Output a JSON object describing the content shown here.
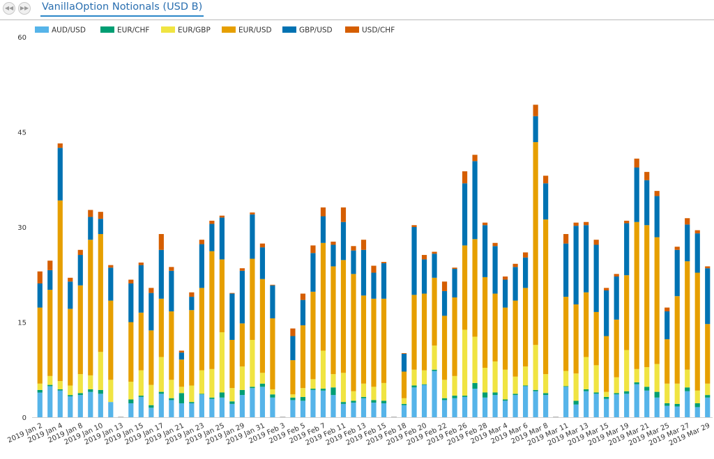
{
  "toolbar": {
    "prev_icon": "rewind-icon",
    "next_icon": "forward-icon",
    "prev_glyph": "◀◀",
    "next_glyph": "▶▶",
    "tab_label": "VanillaOption Notionals (USD B)"
  },
  "chart_data": {
    "type": "bar",
    "stacked": true,
    "title": "",
    "xlabel": "",
    "ylabel": "",
    "ylim": [
      0,
      60
    ],
    "yticks": [
      0,
      15,
      30,
      45,
      60
    ],
    "grid": false,
    "legend_position": "top-left",
    "categories": [
      "2019 Jan 2",
      "2019 Jan 3",
      "2019 Jan 4",
      "2019 Jan 7",
      "2019 Jan 8",
      "2019 Jan 9",
      "2019 Jan 10",
      "2019 Jan 11",
      "2019 Jan 13",
      "2019 Jan 14",
      "2019 Jan 15",
      "2019 Jan 16",
      "2019 Jan 17",
      "2019 Jan 18",
      "2019 Jan 21",
      "2019 Jan 22",
      "2019 Jan 23",
      "2019 Jan 24",
      "2019 Jan 25",
      "2019 Jan 28",
      "2019 Jan 29",
      "2019 Jan 30",
      "2019 Jan 31",
      "2019 Feb 1",
      "2019 Feb 3",
      "2019 Feb 4",
      "2019 Feb 5",
      "2019 Feb 6",
      "2019 Feb 7",
      "2019 Feb 8",
      "2019 Feb 11",
      "2019 Feb 12",
      "2019 Feb 13",
      "2019 Feb 14",
      "2019 Feb 15",
      "2019 Feb 17",
      "2019 Feb 18",
      "2019 Feb 19",
      "2019 Feb 20",
      "2019 Feb 21",
      "2019 Feb 22",
      "2019 Feb 25",
      "2019 Feb 26",
      "2019 Feb 27",
      "2019 Feb 28",
      "2019 Mar 1",
      "2019 Mar 4",
      "2019 Mar 5",
      "2019 Mar 6",
      "2019 Mar 7",
      "2019 Mar 8",
      "2019 Mar 10",
      "2019 Mar 11",
      "2019 Mar 12",
      "2019 Mar 13",
      "2019 Mar 14",
      "2019 Mar 15",
      "2019 Mar 18",
      "2019 Mar 19",
      "2019 Mar 20",
      "2019 Mar 21",
      "2019 Mar 22",
      "2019 Mar 25",
      "2019 Mar 26",
      "2019 Mar 27",
      "2019 Mar 28",
      "2019 Mar 29"
    ],
    "tick_labels": [
      {
        "index": 0,
        "label": "2019 Jan 2"
      },
      {
        "index": 2,
        "label": "2019 Jan 4"
      },
      {
        "index": 4,
        "label": "2019 Jan 8"
      },
      {
        "index": 6,
        "label": "2019 Jan 10"
      },
      {
        "index": 8,
        "label": "2019 Jan 13"
      },
      {
        "index": 10,
        "label": "2019 Jan 15"
      },
      {
        "index": 12,
        "label": "2019 Jan 17"
      },
      {
        "index": 14,
        "label": "2019 Jan 21"
      },
      {
        "index": 16,
        "label": "2019 Jan 23"
      },
      {
        "index": 18,
        "label": "2019 Jan 25"
      },
      {
        "index": 20,
        "label": "2019 Jan 29"
      },
      {
        "index": 22,
        "label": "2019 Jan 31"
      },
      {
        "index": 24,
        "label": "2019 Feb 3"
      },
      {
        "index": 26,
        "label": "2019 Feb 5"
      },
      {
        "index": 28,
        "label": "2019 Feb 7"
      },
      {
        "index": 30,
        "label": "2019 Feb 11"
      },
      {
        "index": 32,
        "label": "2019 Feb 13"
      },
      {
        "index": 34,
        "label": "2019 Feb 15"
      },
      {
        "index": 36,
        "label": "2019 Feb 18"
      },
      {
        "index": 38,
        "label": "2019 Feb 20"
      },
      {
        "index": 40,
        "label": "2019 Feb 22"
      },
      {
        "index": 42,
        "label": "2019 Feb 26"
      },
      {
        "index": 44,
        "label": "2019 Feb 28"
      },
      {
        "index": 46,
        "label": "2019 Mar 4"
      },
      {
        "index": 48,
        "label": "2019 Mar 6"
      },
      {
        "index": 50,
        "label": "2019 Mar 8"
      },
      {
        "index": 52,
        "label": "2019 Mar 11"
      },
      {
        "index": 54,
        "label": "2019 Mar 13"
      },
      {
        "index": 56,
        "label": "2019 Mar 15"
      },
      {
        "index": 58,
        "label": "2019 Mar 19"
      },
      {
        "index": 60,
        "label": "2019 Mar 21"
      },
      {
        "index": 62,
        "label": "2019 Mar 25"
      },
      {
        "index": 64,
        "label": "2019 Mar 27"
      },
      {
        "index": 66,
        "label": "2019 Mar 29"
      }
    ],
    "series": [
      {
        "name": "AUD/USD",
        "color": "#56b4e9",
        "values": [
          3.9,
          4.9,
          4.2,
          3.3,
          3.5,
          4.0,
          3.7,
          2.4,
          0,
          2.2,
          3.2,
          1.5,
          3.7,
          2.7,
          2.2,
          2.2,
          3.6,
          2.9,
          3.1,
          2.1,
          3.5,
          4.6,
          4.8,
          3.1,
          0,
          2.7,
          2.6,
          4.3,
          4.2,
          3.5,
          2.1,
          2.3,
          3.0,
          2.3,
          2.2,
          0,
          1.9,
          4.7,
          5.1,
          7.3,
          2.7,
          3.0,
          3.2,
          4.5,
          3.1,
          3.5,
          2.6,
          3.5,
          4.9,
          4.1,
          3.5,
          0,
          4.8,
          2.0,
          4.1,
          3.7,
          2.9,
          3.6,
          3.7,
          5.2,
          4.2,
          3.1,
          1.8,
          1.7,
          4.1,
          1.6,
          3.1
        ]
      },
      {
        "name": "EUR/CHF",
        "color": "#009e73",
        "values": [
          0.4,
          0.2,
          0.2,
          0.2,
          0.3,
          0.4,
          0.6,
          0,
          0,
          0.6,
          0.2,
          0.4,
          0.3,
          0.3,
          1.6,
          0.2,
          0.1,
          0.2,
          0.8,
          0.4,
          0.8,
          0.2,
          0.5,
          0.5,
          0,
          0.4,
          0.6,
          0.2,
          0.3,
          1.2,
          0.3,
          0.3,
          0.2,
          0.4,
          0.4,
          0,
          0.2,
          0.3,
          0.1,
          0.2,
          0.3,
          0.4,
          0.2,
          0.9,
          0.8,
          0.4,
          0.2,
          0.2,
          0.1,
          0.2,
          0.3,
          0,
          0.1,
          0.6,
          0.3,
          0.2,
          0.3,
          0.2,
          0.4,
          0.3,
          0.6,
          0.9,
          0.4,
          0.4,
          0.6,
          0.6,
          0.4
        ]
      },
      {
        "name": "EUR/GBP",
        "color": "#f0e442",
        "values": [
          1,
          1.4,
          1.3,
          1.5,
          3.0,
          2.2,
          6.0,
          3.5,
          0,
          2.8,
          4.0,
          3.2,
          5.5,
          2.9,
          1.0,
          2.6,
          3.7,
          4.5,
          9.5,
          2.1,
          3.7,
          7.4,
          1.7,
          0.8,
          0,
          0.5,
          1.4,
          1.5,
          6.0,
          2.1,
          4.6,
          1.5,
          2.1,
          2.1,
          2.8,
          0,
          0.9,
          2.5,
          2.2,
          3.8,
          2.9,
          3.1,
          10.4,
          7.3,
          3.9,
          4.9,
          4.7,
          2.7,
          3.0,
          7.1,
          3.0,
          0,
          2.4,
          4.3,
          5.1,
          4.3,
          0.8,
          2.5,
          6.5,
          2.1,
          3.1,
          4.4,
          3.1,
          3.2,
          2.8,
          2.0,
          1.8
        ]
      },
      {
        "name": "EUR/USD",
        "color": "#e69f00",
        "values": [
          12,
          13.6,
          28.5,
          12.1,
          14.0,
          21.4,
          18.6,
          12.5,
          0,
          9.4,
          9.1,
          8.6,
          9.2,
          10.8,
          4.3,
          11.9,
          13.0,
          18.6,
          11.5,
          7.6,
          6.8,
          12.8,
          14.8,
          11.2,
          0,
          5.4,
          9.9,
          13.8,
          17.0,
          17.0,
          17.8,
          18.5,
          13.9,
          13.9,
          13.3,
          0,
          4.2,
          11.8,
          12.1,
          10.7,
          10.1,
          12.4,
          13.3,
          15.4,
          14.3,
          10.7,
          9.8,
          12.0,
          12.4,
          32.0,
          24.4,
          0,
          11.7,
          10.9,
          10.2,
          8.4,
          8.8,
          9.1,
          11.8,
          23.2,
          22.4,
          20.0,
          7.0,
          13.8,
          17.1,
          18.6,
          9.4
        ]
      },
      {
        "name": "GBP/USD",
        "color": "#0072b2",
        "values": [
          3.8,
          3.1,
          8.3,
          4.3,
          4.8,
          3.6,
          2.4,
          5.2,
          0,
          6.1,
          7.5,
          5.9,
          7.7,
          6.4,
          1.1,
          2.1,
          6.9,
          4.3,
          6.6,
          7.3,
          8.3,
          7.0,
          5.0,
          5.2,
          0,
          3.8,
          4.0,
          6.1,
          4.2,
          3.4,
          6.0,
          3.7,
          7.2,
          4.1,
          5.6,
          0,
          2.8,
          10.7,
          5.4,
          3.8,
          3.9,
          4.5,
          9.8,
          12.3,
          8.2,
          7.5,
          4.4,
          5.3,
          4.8,
          4.1,
          5.7,
          0,
          8.4,
          12.4,
          10.6,
          10.6,
          7.2,
          6.8,
          8.2,
          8.6,
          7.1,
          6.5,
          4.4,
          7.3,
          5.8,
          6.2,
          8.8
        ]
      },
      {
        "name": "USD/CHF",
        "color": "#d55e00",
        "values": [
          1.9,
          1.5,
          0.7,
          0.6,
          0.8,
          1.1,
          1.1,
          0.4,
          0,
          0.6,
          0.4,
          0.8,
          2.5,
          0.6,
          0.3,
          0.7,
          0.7,
          0.5,
          0.3,
          0.1,
          0.4,
          0.3,
          0.6,
          0.1,
          0,
          1.2,
          1.0,
          1.2,
          1.4,
          0.5,
          2.3,
          0.7,
          1.6,
          1.1,
          0.2,
          0,
          0.1,
          0.3,
          0.7,
          0.3,
          1.5,
          0.2,
          1.9,
          1.0,
          0.4,
          0.5,
          0.5,
          0.5,
          0.8,
          1.8,
          1.2,
          0,
          1.5,
          0.5,
          0.5,
          0.8,
          0.4,
          0.4,
          0.4,
          1.4,
          1.3,
          0.8,
          0.6,
          0.5,
          1.0,
          0.5,
          0.3
        ]
      }
    ]
  }
}
